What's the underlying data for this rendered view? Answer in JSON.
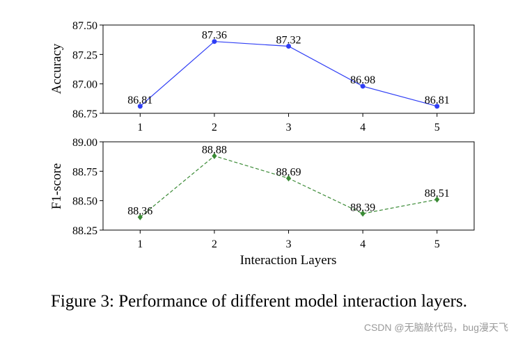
{
  "chart_data": [
    {
      "type": "line",
      "x": [
        1,
        2,
        3,
        4,
        5
      ],
      "series": [
        {
          "name": "Accuracy",
          "values": [
            86.81,
            87.36,
            87.32,
            86.98,
            86.81
          ],
          "color": "#2f3ef5",
          "marker": "circle",
          "linestyle": "solid"
        }
      ],
      "data_labels": [
        "86.81",
        "87.36",
        "87.32",
        "86.98",
        "86.81"
      ],
      "ylabel": "Accuracy",
      "xlabel": "",
      "ylim": [
        86.75,
        87.5
      ],
      "yticks": [
        86.75,
        87.0,
        87.25,
        87.5
      ],
      "ytick_labels": [
        "86.75",
        "87.00",
        "87.25",
        "87.50"
      ],
      "xtick_labels": [
        "1",
        "2",
        "3",
        "4",
        "5"
      ],
      "grid": false
    },
    {
      "type": "line",
      "x": [
        1,
        2,
        3,
        4,
        5
      ],
      "series": [
        {
          "name": "F1-score",
          "values": [
            88.36,
            88.88,
            88.69,
            88.39,
            88.51
          ],
          "color": "#3a8a35",
          "marker": "diamond",
          "linestyle": "dashed"
        }
      ],
      "data_labels": [
        "88.36",
        "88.88",
        "88.69",
        "88.39",
        "88.51"
      ],
      "ylabel": "F1-score",
      "xlabel": "Interaction Layers",
      "ylim": [
        88.25,
        89.0
      ],
      "yticks": [
        88.25,
        88.5,
        88.75,
        89.0
      ],
      "ytick_labels": [
        "88.25",
        "88.50",
        "88.75",
        "89.00"
      ],
      "xtick_labels": [
        "1",
        "2",
        "3",
        "4",
        "5"
      ],
      "grid": false
    }
  ],
  "caption": "Figure 3: Performance of different model interaction layers.",
  "watermark": "CSDN @无脑敲代码，bug漫天飞"
}
